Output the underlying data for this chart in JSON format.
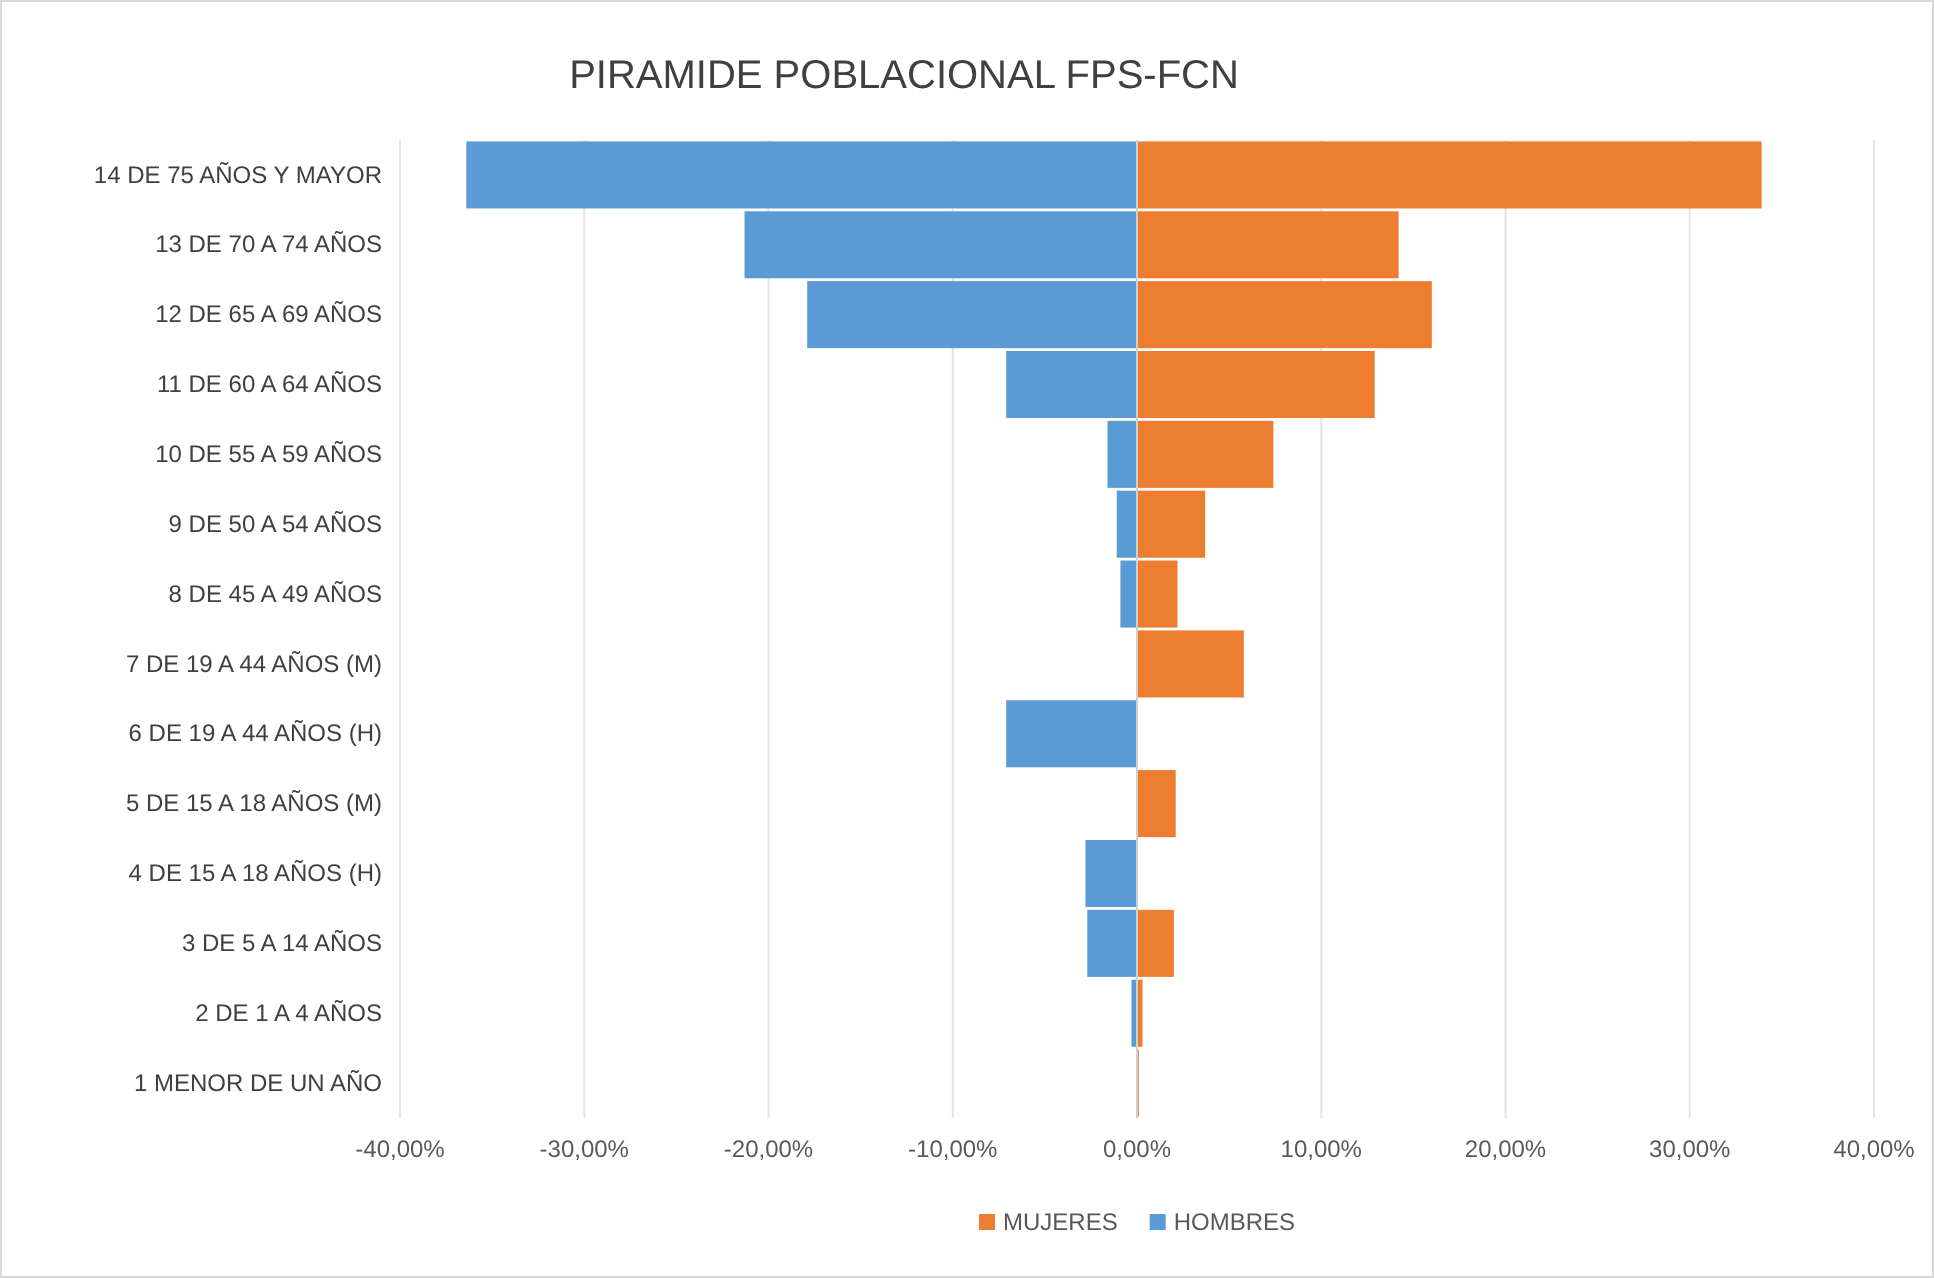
{
  "chart_data": {
    "type": "bar",
    "orientation": "horizontal",
    "stacked": true,
    "title": "PIRAMIDE POBLACIONAL FPS-FCN",
    "categories": [
      "14 DE 75 AÑOS Y MAYOR",
      "13 DE 70 A 74 AÑOS",
      "12 DE 65 A 69 AÑOS",
      "11 DE 60 A 64 AÑOS",
      "10 DE 55 A 59 AÑOS",
      "9 DE 50 A 54 AÑOS",
      "8 DE 45 A 49 AÑOS",
      "7 DE 19 A 44 AÑOS (M)",
      "6 DE 19 A 44 AÑOS (H)",
      "5 DE 15 A 18 AÑOS (M)",
      "4 DE 15 A 18 AÑOS (H)",
      "3 DE 5 A 14 AÑOS",
      "2 DE 1 A 4 AÑOS",
      "1 MENOR DE UN AÑO"
    ],
    "series": [
      {
        "name": "MUJERES",
        "color": "#ed7d31",
        "values": [
          33.9,
          14.2,
          16.0,
          12.9,
          7.4,
          3.7,
          2.2,
          5.8,
          0,
          2.1,
          0,
          2.0,
          0.3,
          0.1
        ]
      },
      {
        "name": "HOMBRES",
        "color": "#5b9bd5",
        "values": [
          -36.4,
          -21.3,
          -17.9,
          -7.1,
          -1.6,
          -1.1,
          -0.9,
          0,
          -7.1,
          0,
          -2.8,
          -2.7,
          -0.3,
          0
        ]
      }
    ],
    "xlim": [
      -40,
      40
    ],
    "xticks": [
      {
        "value": -40,
        "label": "-40,00%"
      },
      {
        "value": -30,
        "label": "-30,00%"
      },
      {
        "value": -20,
        "label": "-20,00%"
      },
      {
        "value": -10,
        "label": "-10,00%"
      },
      {
        "value": 0,
        "label": "0,00%"
      },
      {
        "value": 10,
        "label": "10,00%"
      },
      {
        "value": 20,
        "label": "20,00%"
      },
      {
        "value": 30,
        "label": "30,00%"
      },
      {
        "value": 40,
        "label": "40,00%"
      }
    ],
    "grid": "x",
    "legend": "bottom"
  }
}
